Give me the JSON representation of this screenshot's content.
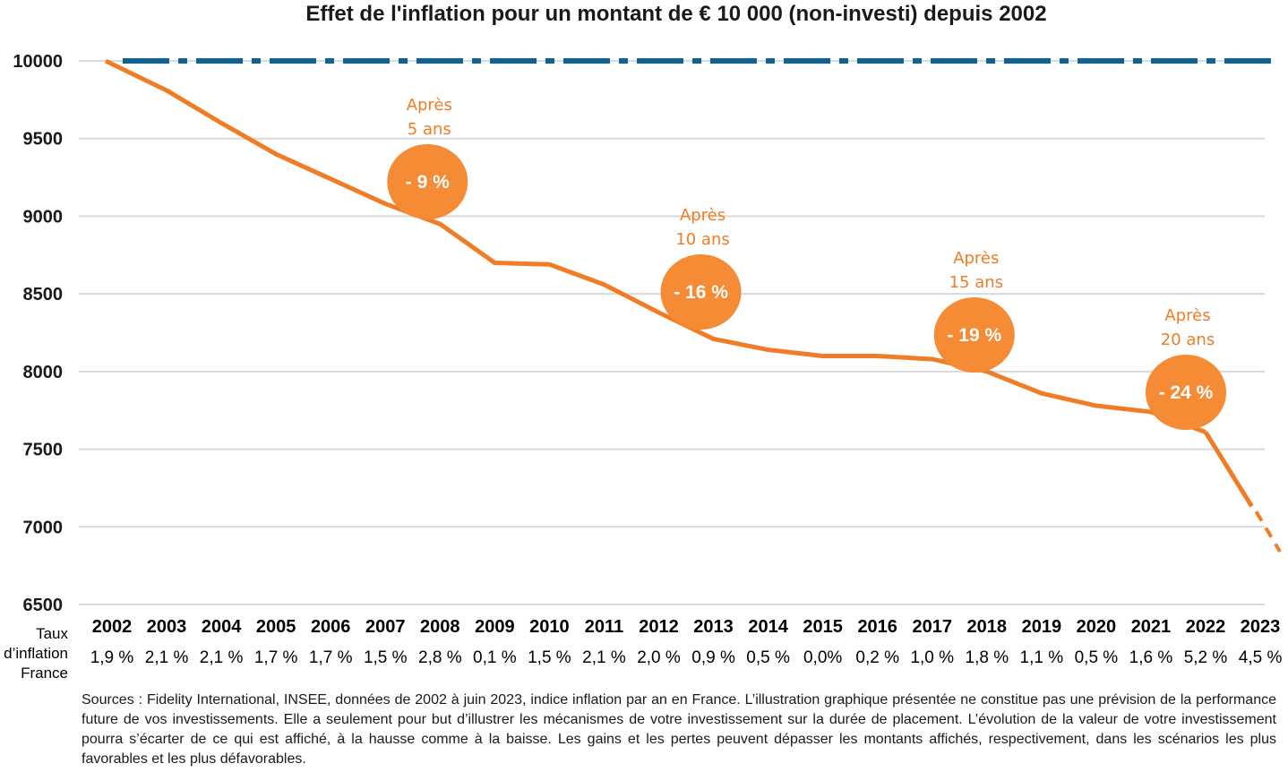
{
  "chart_data": {
    "type": "line",
    "title": "Effet de l'inflation pour un montant de € 10 000 (non-investi) depuis 2002",
    "ylim": [
      6500,
      10000
    ],
    "yticks": [
      10000,
      9500,
      9000,
      8500,
      8000,
      7500,
      7000,
      6500
    ],
    "grid": true,
    "categories": [
      "2002",
      "2003",
      "2004",
      "2005",
      "2006",
      "2007",
      "2008",
      "2009",
      "2010",
      "2011",
      "2012",
      "2013",
      "2014",
      "2015",
      "2016",
      "2017",
      "2018",
      "2019",
      "2020",
      "2021",
      "2022",
      "2023"
    ],
    "series": [
      {
        "color": "#f07d25",
        "style": "solid, last segment dashed",
        "values": [
          10000,
          9810,
          9600,
          9400,
          9240,
          9080,
          8950,
          8700,
          8690,
          8560,
          8380,
          8210,
          8140,
          8100,
          8100,
          8080,
          8000,
          7860,
          7780,
          7740,
          7610,
          6840
        ]
      },
      {
        "color": "#0e6497",
        "style": "dash-dot",
        "values": [
          10000,
          10000,
          10000,
          10000,
          10000,
          10000,
          10000,
          10000,
          10000,
          10000,
          10000,
          10000,
          10000,
          10000,
          10000,
          10000,
          10000,
          10000,
          10000,
          10000,
          10000,
          10000
        ]
      }
    ],
    "annotations": [
      {
        "label_line1": "Après",
        "label_line2": "5 ans",
        "bubble": "- 9 %",
        "year": "2008"
      },
      {
        "label_line1": "Après",
        "label_line2": "10 ans",
        "bubble": "- 16 %",
        "year": "2013"
      },
      {
        "label_line1": "Après",
        "label_line2": "15 ans",
        "bubble": "- 19 %",
        "year": "2018"
      },
      {
        "label_line1": "Après",
        "label_line2": "20 ans",
        "bubble": "- 24 %",
        "year": "2022"
      }
    ],
    "bubble_color": "#f58b34",
    "inflation_row": {
      "label": "Taux d’inflation France",
      "values": [
        "1,9 %",
        "2,1 %",
        "2,1 %",
        "1,7 %",
        "1,7 %",
        "1,5 %",
        "2,8 %",
        "0,1 %",
        "1,5 %",
        "2,1 %",
        "2,0 %",
        "0,9 %",
        "0,5 %",
        "0,0%",
        "0,2 %",
        "1,0 %",
        "1,8 %",
        "1,1 %",
        "0,5 %",
        "1,6 %",
        "5,2 %",
        "4,5 %"
      ]
    }
  },
  "sources": "Sources : Fidelity International, INSEE, données de 2002 à juin 2023, indice inflation par an en France. L’illustration graphique présentée ne constitue pas une prévision de la performance future de vos investissements. Elle a seulement pour but d’illustrer les mécanismes de votre investissement sur la durée de placement. L’évolution de la valeur de votre investissement pourra s’écarter de ce qui est affiché, à la hausse comme à la baisse. Les gains et les pertes peuvent dépasser les montants affichés, respectivement, dans les scénarios les plus favorables et les plus défavorables."
}
